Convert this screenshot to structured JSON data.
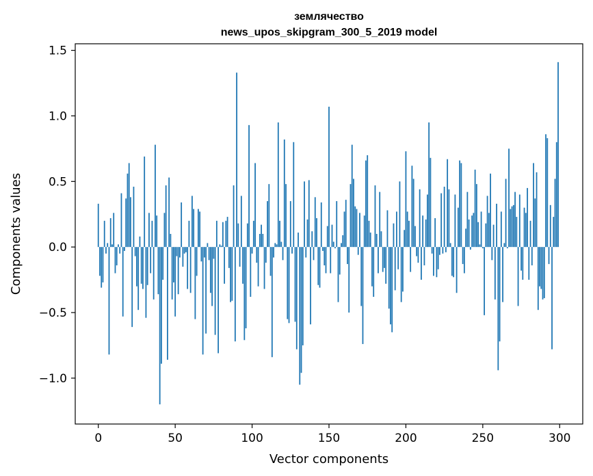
{
  "chart_data": {
    "type": "bar",
    "title": "землячество",
    "subtitle": "news_upos_skipgram_300_5_2019 model",
    "xlabel": "Vector components",
    "ylabel": "Components values",
    "xlim": [
      -15,
      315
    ],
    "ylim": [
      -1.35,
      1.55
    ],
    "x_ticks": [
      0,
      50,
      100,
      150,
      200,
      250,
      300
    ],
    "x_tick_labels": [
      "0",
      "50",
      "100",
      "150",
      "200",
      "250",
      "300"
    ],
    "y_ticks": [
      -1.0,
      -0.5,
      0.0,
      0.5,
      1.0,
      1.5
    ],
    "y_tick_labels": [
      "−1.0",
      "−0.5",
      "0.0",
      "0.5",
      "1.0",
      "1.5"
    ],
    "grid": false,
    "bar_color": "#1f77b4",
    "values": [
      0.33,
      -0.22,
      -0.31,
      -0.27,
      0.2,
      -0.05,
      0.03,
      -0.82,
      0.22,
      0.02,
      0.26,
      -0.2,
      -0.14,
      0.02,
      -0.05,
      0.41,
      -0.53,
      -0.03,
      0.37,
      0.56,
      0.64,
      0.38,
      -0.61,
      0.46,
      -0.07,
      -0.3,
      -0.48,
      0.08,
      -0.28,
      -0.32,
      0.69,
      -0.54,
      -0.29,
      0.26,
      -0.2,
      0.2,
      -0.4,
      0.78,
      0.24,
      -0.36,
      -1.2,
      -0.89,
      -0.25,
      0.26,
      0.47,
      -0.86,
      0.53,
      0.1,
      -0.4,
      -0.27,
      -0.53,
      -0.07,
      -0.36,
      -0.08,
      0.34,
      -0.15,
      -0.05,
      -0.04,
      -0.32,
      0.2,
      -0.35,
      0.39,
      0.29,
      -0.55,
      -0.22,
      0.29,
      0.27,
      -0.11,
      -0.82,
      -0.08,
      -0.66,
      0.03,
      -0.1,
      -0.35,
      -0.45,
      -0.09,
      -0.67,
      0.2,
      -0.81,
      0.02,
      0.01,
      0.19,
      -0.28,
      0.2,
      0.23,
      -0.16,
      -0.42,
      -0.41,
      0.47,
      -0.72,
      1.33,
      0.18,
      -0.15,
      0.39,
      -0.28,
      -0.71,
      -0.62,
      0.18,
      0.93,
      -0.38,
      -0.05,
      0.2,
      0.64,
      -0.12,
      -0.3,
      0.1,
      0.17,
      0.1,
      -0.32,
      -0.12,
      0.35,
      0.48,
      -0.22,
      -0.84,
      -0.08,
      0.03,
      0.02,
      0.95,
      0.2,
      0.04,
      -0.1,
      0.82,
      0.48,
      -0.55,
      -0.58,
      0.35,
      -0.05,
      0.8,
      -0.57,
      -0.78,
      0.11,
      -1.05,
      -0.96,
      -0.75,
      0.5,
      -0.08,
      0.21,
      0.51,
      -0.59,
      0.12,
      -0.1,
      0.38,
      0.22,
      -0.29,
      -0.31,
      0.34,
      -0.03,
      -0.14,
      -0.2,
      0.16,
      1.07,
      -0.2,
      0.17,
      0.04,
      -0.01,
      0.35,
      -0.42,
      -0.21,
      0.03,
      0.09,
      0.27,
      0.36,
      -0.13,
      -0.5,
      0.48,
      0.78,
      0.52,
      0.31,
      0.29,
      -0.06,
      0.26,
      -0.45,
      -0.74,
      0.24,
      0.66,
      0.7,
      0.2,
      0.11,
      -0.3,
      -0.38,
      0.47,
      0.1,
      -0.2,
      0.42,
      0.12,
      -0.19,
      -0.16,
      -0.28,
      0.28,
      -0.47,
      -0.59,
      -0.65,
      0.18,
      -0.33,
      0.27,
      -0.17,
      0.5,
      -0.42,
      -0.34,
      0.13,
      0.73,
      0.27,
      0.2,
      -0.19,
      0.62,
      0.52,
      0.16,
      -0.07,
      -0.12,
      0.44,
      -0.25,
      0.24,
      -0.14,
      0.21,
      0.4,
      0.95,
      0.68,
      -0.05,
      -0.22,
      0.22,
      -0.23,
      -0.17,
      -0.06,
      0.41,
      -0.05,
      0.46,
      -0.04,
      0.67,
      0.44,
      0.03,
      -0.22,
      -0.23,
      0.4,
      -0.35,
      0.3,
      0.66,
      0.64,
      -0.13,
      -0.2,
      0.14,
      0.42,
      0.21,
      -0.02,
      0.24,
      0.26,
      0.59,
      0.48,
      0.19,
      0.02,
      0.27,
      -0.01,
      -0.52,
      0.18,
      0.39,
      0.26,
      0.56,
      -0.1,
      0.17,
      -0.4,
      0.33,
      -0.94,
      -0.72,
      0.27,
      -0.42,
      0.03,
      0.52,
      -0.01,
      0.75,
      0.29,
      0.31,
      0.32,
      0.42,
      0.23,
      -0.45,
      0.4,
      -0.18,
      -0.25,
      0.3,
      0.26,
      0.45,
      -0.25,
      0.2,
      -0.14,
      0.64,
      0.37,
      0.57,
      -0.48,
      -0.3,
      -0.32,
      -0.4,
      -0.39,
      0.86,
      0.83,
      -0.13,
      0.32,
      -0.78,
      0.23,
      0.52,
      0.8,
      1.41
    ]
  }
}
